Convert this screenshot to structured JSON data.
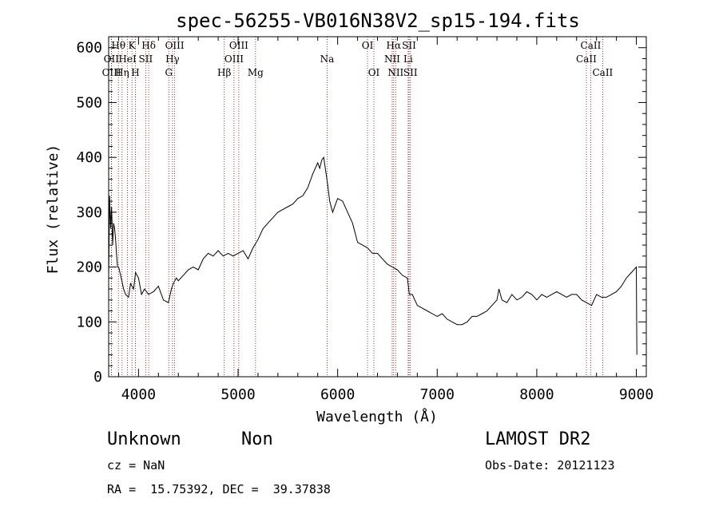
{
  "chart_data": {
    "type": "line",
    "title": "spec-56255-VB016N38V2_sp15-194.fits",
    "xlabel": "Wavelength (Å)",
    "ylabel": "Flux (relative)",
    "xlim": [
      3700,
      9100
    ],
    "ylim": [
      0,
      620
    ],
    "xticks": [
      4000,
      5000,
      6000,
      7000,
      8000,
      9000
    ],
    "yticks": [
      0,
      100,
      200,
      300,
      400,
      500,
      600
    ],
    "grid": false,
    "series": [
      {
        "x": [
          3700,
          3710,
          3720,
          3730,
          3740,
          3750,
          3760,
          3770,
          3780,
          3790,
          3800,
          3820,
          3850,
          3870,
          3900,
          3920,
          3950,
          3970,
          4000,
          4030,
          4060,
          4100,
          4150,
          4200,
          4250,
          4300,
          4330,
          4350,
          4380,
          4400,
          4450,
          4500,
          4550,
          4600,
          4650,
          4700,
          4750,
          4800,
          4850,
          4900,
          4950,
          5000,
          5050,
          5100,
          5150,
          5200,
          5250,
          5300,
          5350,
          5400,
          5450,
          5500,
          5550,
          5600,
          5650,
          5700,
          5750,
          5800,
          5820,
          5840,
          5860,
          5880,
          5900,
          5920,
          5950,
          6000,
          6050,
          6100,
          6150,
          6200,
          6250,
          6300,
          6350,
          6400,
          6450,
          6500,
          6550,
          6600,
          6650,
          6700,
          6720,
          6750,
          6800,
          6850,
          6900,
          6950,
          7000,
          7050,
          7100,
          7150,
          7200,
          7250,
          7300,
          7350,
          7400,
          7450,
          7500,
          7550,
          7600,
          7620,
          7650,
          7700,
          7750,
          7800,
          7850,
          7900,
          7950,
          8000,
          8050,
          8100,
          8150,
          8200,
          8250,
          8300,
          8350,
          8400,
          8450,
          8500,
          8550,
          8600,
          8650,
          8700,
          8750,
          8800,
          8850,
          8900,
          8950,
          9000,
          9005
        ],
        "y": [
          180,
          330,
          270,
          310,
          240,
          280,
          270,
          250,
          220,
          200,
          200,
          185,
          160,
          150,
          145,
          170,
          160,
          190,
          180,
          150,
          160,
          150,
          155,
          165,
          140,
          135,
          160,
          170,
          180,
          175,
          185,
          195,
          200,
          195,
          215,
          225,
          220,
          230,
          220,
          225,
          220,
          225,
          230,
          215,
          235,
          250,
          270,
          280,
          290,
          300,
          305,
          310,
          315,
          325,
          330,
          345,
          370,
          390,
          380,
          395,
          400,
          375,
          350,
          320,
          300,
          325,
          320,
          300,
          280,
          245,
          240,
          235,
          225,
          225,
          215,
          205,
          200,
          195,
          185,
          180,
          150,
          150,
          130,
          125,
          120,
          115,
          110,
          115,
          105,
          100,
          95,
          95,
          100,
          110,
          110,
          115,
          120,
          130,
          140,
          160,
          140,
          135,
          150,
          140,
          145,
          155,
          150,
          140,
          150,
          145,
          150,
          155,
          150,
          145,
          150,
          150,
          140,
          135,
          130,
          150,
          145,
          145,
          150,
          155,
          165,
          180,
          190,
          200,
          40
        ]
      }
    ],
    "lines": [
      {
        "label": "Hθ",
        "x": 3798,
        "row": 1
      },
      {
        "label": "OII",
        "x": 3727,
        "row": 2
      },
      {
        "label": "OIII",
        "x": 3729,
        "row": 3
      },
      {
        "label": "HeI",
        "x": 3889,
        "row": 2
      },
      {
        "label": "Hη",
        "x": 3835,
        "row": 3
      },
      {
        "label": "K",
        "x": 3934,
        "row": 1
      },
      {
        "label": "H",
        "x": 3969,
        "row": 3
      },
      {
        "label": "SII",
        "x": 4072,
        "row": 2
      },
      {
        "label": "Hδ",
        "x": 4102,
        "row": 1
      },
      {
        "label": "G",
        "x": 4304,
        "row": 3
      },
      {
        "label": "Hγ",
        "x": 4341,
        "row": 2
      },
      {
        "label": "OIII",
        "x": 4363,
        "row": 1
      },
      {
        "label": "Hβ",
        "x": 4861,
        "row": 3
      },
      {
        "label": "OIII",
        "x": 4959,
        "row": 2
      },
      {
        "label": "OIII",
        "x": 5007,
        "row": 1
      },
      {
        "label": "Mg",
        "x": 5175,
        "row": 3
      },
      {
        "label": "Na",
        "x": 5894,
        "row": 2
      },
      {
        "label": "OI",
        "x": 6300,
        "row": 1
      },
      {
        "label": "OI",
        "x": 6364,
        "row": 3
      },
      {
        "label": "NII",
        "x": 6548,
        "row": 2
      },
      {
        "label": "Hα",
        "x": 6563,
        "row": 1
      },
      {
        "label": "NII",
        "x": 6583,
        "row": 3
      },
      {
        "label": "Li",
        "x": 6708,
        "row": 2
      },
      {
        "label": "SII",
        "x": 6717,
        "row": 1
      },
      {
        "label": "SII",
        "x": 6731,
        "row": 3
      },
      {
        "label": "CaII",
        "x": 8498,
        "row": 2
      },
      {
        "label": "CaII",
        "x": 8542,
        "row": 1
      },
      {
        "label": "CaII",
        "x": 8662,
        "row": 3
      }
    ]
  },
  "info": {
    "classification": "Unknown",
    "subclass": "Non",
    "survey": "LAMOST DR2",
    "cz": "cz = NaN",
    "obs_date": "Obs-Date: 20121123",
    "coords": "RA =  15.75392, DEC =  39.37838"
  }
}
